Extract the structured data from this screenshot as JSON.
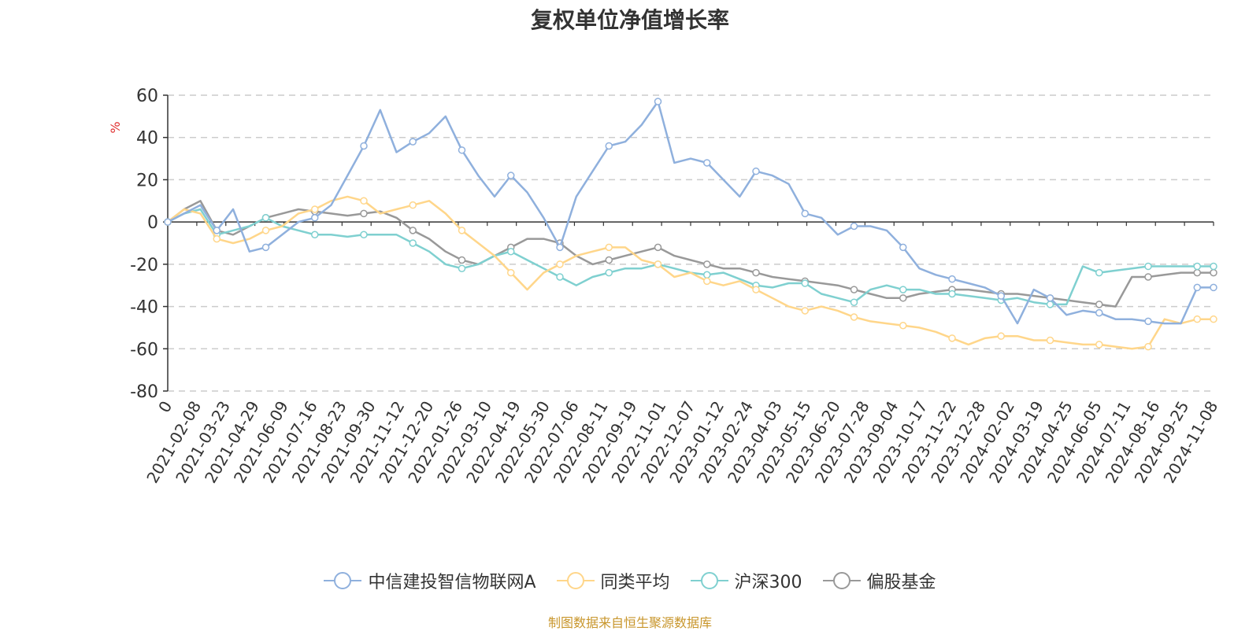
{
  "title": "复权单位净值增长率",
  "source": "制图数据来自恒生聚源数据库",
  "chart_data": {
    "type": "line",
    "title": "复权单位净值增长率",
    "ylabel": "%",
    "xlabel": "",
    "ylim": [
      -80,
      60
    ],
    "yticks": [
      60,
      40,
      20,
      0,
      -20,
      -40,
      -60,
      -80
    ],
    "grid": true,
    "legend_position": "bottom",
    "x_tick_labels": [
      "0",
      "2021-02-08",
      "2021-03-23",
      "2021-04-29",
      "2021-06-09",
      "2021-07-16",
      "2021-08-23",
      "2021-09-30",
      "2021-11-12",
      "2021-12-20",
      "2022-01-26",
      "2022-03-10",
      "2022-04-19",
      "2022-05-30",
      "2022-07-06",
      "2022-08-11",
      "2022-09-19",
      "2022-11-01",
      "2022-12-07",
      "2023-01-12",
      "2023-02-24",
      "2023-04-03",
      "2023-05-15",
      "2023-06-20",
      "2023-07-28",
      "2023-09-04",
      "2023-10-17",
      "2023-11-22",
      "2023-12-28",
      "2024-02-02",
      "2024-03-19",
      "2024-04-25",
      "2024-06-05",
      "2024-07-11",
      "2024-08-16",
      "2024-09-25",
      "2024-11-08"
    ],
    "series": [
      {
        "name": "中信建投智信物联网A",
        "color": "#8fb0dd",
        "values": [
          0,
          4,
          8,
          -4,
          6,
          -14,
          -12,
          -6,
          0,
          2,
          8,
          22,
          36,
          53,
          33,
          38,
          42,
          50,
          34,
          22,
          12,
          22,
          14,
          2,
          -12,
          12,
          24,
          36,
          38,
          46,
          57,
          28,
          30,
          28,
          20,
          12,
          24,
          22,
          18,
          4,
          2,
          -6,
          -2,
          -2,
          -4,
          -12,
          -22,
          -25,
          -27,
          -29,
          -31,
          -35,
          -48,
          -32,
          -36,
          -44,
          -42,
          -43,
          -46,
          -46,
          -47,
          -48,
          -48,
          -31,
          -31
        ]
      },
      {
        "name": "同类平均",
        "color": "#ffd68a",
        "values": [
          0,
          6,
          4,
          -8,
          -10,
          -8,
          -4,
          -2,
          4,
          6,
          10,
          12,
          10,
          4,
          6,
          8,
          10,
          4,
          -4,
          -10,
          -16,
          -24,
          -32,
          -24,
          -20,
          -16,
          -14,
          -12,
          -12,
          -18,
          -20,
          -26,
          -24,
          -28,
          -30,
          -28,
          -32,
          -36,
          -40,
          -42,
          -40,
          -42,
          -45,
          -47,
          -48,
          -49,
          -50,
          -52,
          -55,
          -58,
          -55,
          -54,
          -54,
          -56,
          -56,
          -57,
          -58,
          -58,
          -59,
          -60,
          -59,
          -46,
          -48,
          -46,
          -46
        ]
      },
      {
        "name": "沪深300",
        "color": "#7fd0d0",
        "values": [
          0,
          4,
          6,
          -6,
          -4,
          -2,
          2,
          -2,
          -4,
          -6,
          -6,
          -7,
          -6,
          -6,
          -6,
          -10,
          -14,
          -20,
          -22,
          -20,
          -16,
          -14,
          -18,
          -22,
          -26,
          -30,
          -26,
          -24,
          -22,
          -22,
          -20,
          -22,
          -24,
          -25,
          -24,
          -27,
          -30,
          -31,
          -29,
          -29,
          -34,
          -36,
          -38,
          -32,
          -30,
          -32,
          -32,
          -34,
          -34,
          -35,
          -36,
          -37,
          -36,
          -38,
          -39,
          -39,
          -21,
          -24,
          -23,
          -22,
          -21,
          -21,
          -21,
          -21,
          -21
        ]
      },
      {
        "name": "偏股基金",
        "color": "#999999",
        "values": [
          0,
          6,
          10,
          -4,
          -6,
          -2,
          2,
          4,
          6,
          5,
          4,
          3,
          4,
          5,
          2,
          -4,
          -8,
          -14,
          -18,
          -20,
          -16,
          -12,
          -8,
          -8,
          -10,
          -16,
          -20,
          -18,
          -16,
          -14,
          -12,
          -16,
          -18,
          -20,
          -22,
          -22,
          -24,
          -26,
          -27,
          -28,
          -29,
          -30,
          -32,
          -34,
          -36,
          -36,
          -34,
          -33,
          -32,
          -32,
          -33,
          -34,
          -34,
          -35,
          -36,
          -37,
          -38,
          -39,
          -40,
          -26,
          -26,
          -25,
          -24,
          -24,
          -24
        ]
      }
    ]
  },
  "legend": [
    {
      "label": "中信建投智信物联网A",
      "color": "#8fb0dd"
    },
    {
      "label": "同类平均",
      "color": "#ffd68a"
    },
    {
      "label": "沪深300",
      "color": "#7fd0d0"
    },
    {
      "label": "偏股基金",
      "color": "#999999"
    }
  ]
}
